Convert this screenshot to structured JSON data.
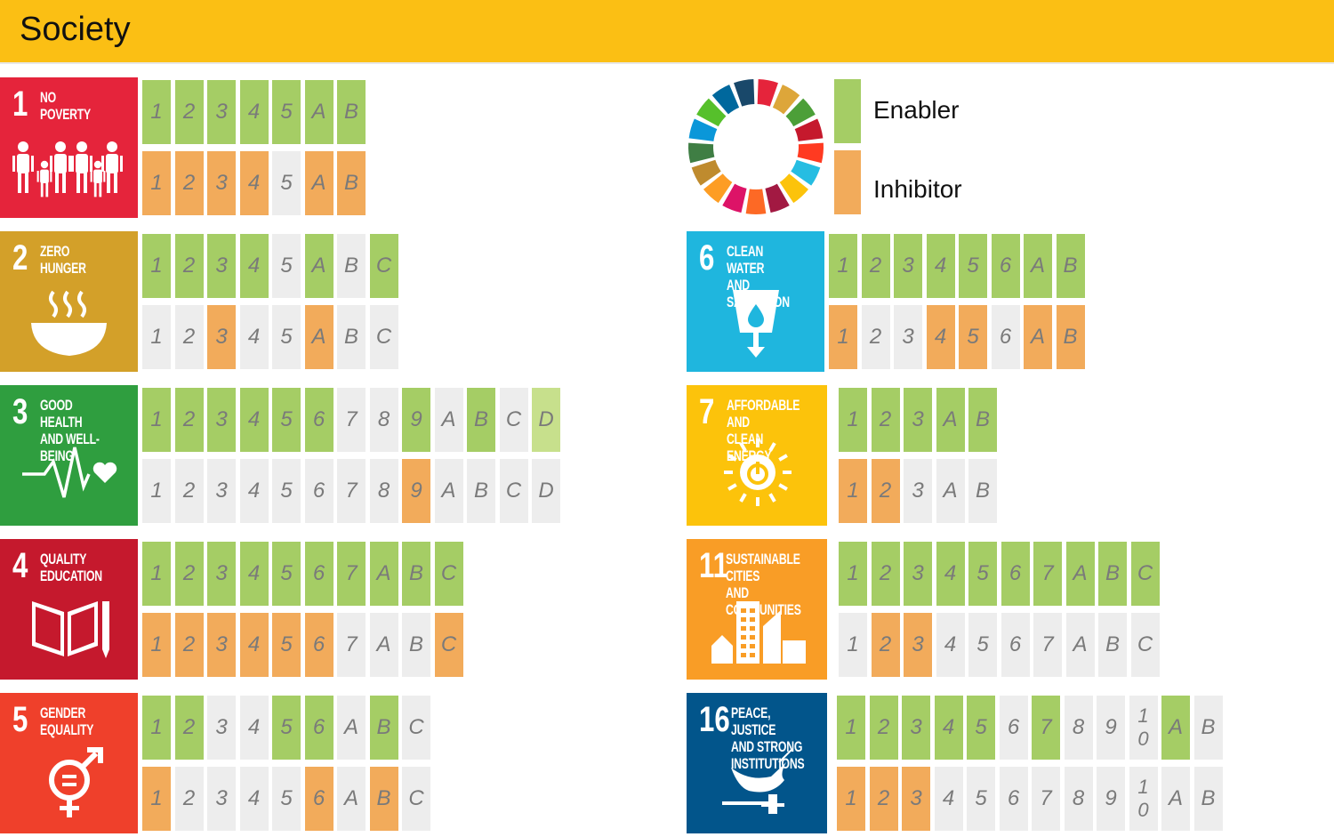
{
  "header": {
    "title": "Society"
  },
  "colors": {
    "enabler": "#a5cd65",
    "inhibitor": "#f2ab5b",
    "neutral": "#ededed",
    "header": "#fbbf14"
  },
  "legend": {
    "enabler": "Enabler",
    "inhibitor": "Inhibitor"
  },
  "goals": [
    {
      "id": "1",
      "number": "1",
      "label": "NO\nPOVERTY",
      "color": "#e5243b",
      "icon": "family-icon",
      "targets": [
        "1",
        "2",
        "3",
        "4",
        "5",
        "A",
        "B"
      ],
      "enabler": [
        1,
        1,
        1,
        1,
        1,
        1,
        1
      ],
      "inhibitor": [
        1,
        1,
        1,
        1,
        0,
        1,
        1
      ]
    },
    {
      "id": "2",
      "number": "2",
      "label": "ZERO\nHUNGER",
      "color": "#d3a029",
      "icon": "bowl-icon",
      "targets": [
        "1",
        "2",
        "3",
        "4",
        "5",
        "A",
        "B",
        "C"
      ],
      "enabler": [
        1,
        1,
        1,
        1,
        0,
        1,
        0,
        1
      ],
      "inhibitor": [
        0,
        0,
        1,
        0,
        0,
        1,
        0,
        0
      ]
    },
    {
      "id": "3",
      "number": "3",
      "label": "GOOD HEALTH\nAND WELL-BEING",
      "color": "#2f9e3f",
      "icon": "heartbeat-icon",
      "targets": [
        "1",
        "2",
        "3",
        "4",
        "5",
        "6",
        "7",
        "8",
        "9",
        "A",
        "B",
        "C",
        "D"
      ],
      "enabler": [
        1,
        1,
        1,
        1,
        1,
        1,
        0,
        0,
        1,
        0,
        1,
        0,
        2
      ],
      "inhibitor": [
        0,
        0,
        0,
        0,
        0,
        0,
        0,
        0,
        1,
        0,
        0,
        0,
        0
      ]
    },
    {
      "id": "4",
      "number": "4",
      "label": "QUALITY\nEDUCATION",
      "color": "#c5192d",
      "icon": "book-icon",
      "targets": [
        "1",
        "2",
        "3",
        "4",
        "5",
        "6",
        "7",
        "A",
        "B",
        "C"
      ],
      "enabler": [
        1,
        1,
        1,
        1,
        1,
        1,
        1,
        1,
        1,
        1
      ],
      "inhibitor": [
        1,
        1,
        1,
        1,
        1,
        1,
        0,
        0,
        0,
        1
      ]
    },
    {
      "id": "5",
      "number": "5",
      "label": "GENDER\nEQUALITY",
      "color": "#ef402b",
      "icon": "gender-icon",
      "targets": [
        "1",
        "2",
        "3",
        "4",
        "5",
        "6",
        "A",
        "B",
        "C"
      ],
      "enabler": [
        1,
        1,
        0,
        0,
        1,
        1,
        0,
        1,
        0
      ],
      "inhibitor": [
        1,
        0,
        0,
        0,
        0,
        1,
        0,
        1,
        0
      ]
    },
    {
      "id": "6",
      "number": "6",
      "label": "CLEAN WATER\nAND SANITATION",
      "color": "#1fb6de",
      "icon": "water-icon",
      "targets": [
        "1",
        "2",
        "3",
        "4",
        "5",
        "6",
        "A",
        "B"
      ],
      "enabler": [
        1,
        1,
        1,
        1,
        1,
        1,
        1,
        1
      ],
      "inhibitor": [
        1,
        0,
        0,
        1,
        1,
        0,
        1,
        1
      ]
    },
    {
      "id": "7",
      "number": "7",
      "label": "AFFORDABLE AND\nCLEAN ENERGY",
      "color": "#fcc30b",
      "icon": "sun-power-icon",
      "targets": [
        "1",
        "2",
        "3",
        "A",
        "B"
      ],
      "enabler": [
        1,
        1,
        1,
        1,
        1
      ],
      "inhibitor": [
        1,
        1,
        0,
        0,
        0
      ]
    },
    {
      "id": "11",
      "number": "11",
      "label": "SUSTAINABLE CITIES\nAND COMMUNITIES",
      "color": "#f99d26",
      "icon": "city-icon",
      "targets": [
        "1",
        "2",
        "3",
        "4",
        "5",
        "6",
        "7",
        "A",
        "B",
        "C"
      ],
      "enabler": [
        1,
        1,
        1,
        1,
        1,
        1,
        1,
        1,
        1,
        1
      ],
      "inhibitor": [
        0,
        1,
        1,
        0,
        0,
        0,
        0,
        0,
        0,
        0
      ]
    },
    {
      "id": "16",
      "number": "16",
      "label": "PEACE, JUSTICE\nAND STRONG\nINSTITUTIONS",
      "color": "#02558b",
      "icon": "dove-gavel-icon",
      "targets": [
        "1",
        "2",
        "3",
        "4",
        "5",
        "6",
        "7",
        "8",
        "9",
        "1\n0",
        "A",
        "B"
      ],
      "enabler": [
        1,
        1,
        1,
        1,
        1,
        0,
        1,
        0,
        0,
        0,
        1,
        0
      ],
      "inhibitor": [
        1,
        1,
        1,
        0,
        0,
        0,
        0,
        0,
        0,
        0,
        0,
        0
      ]
    }
  ]
}
